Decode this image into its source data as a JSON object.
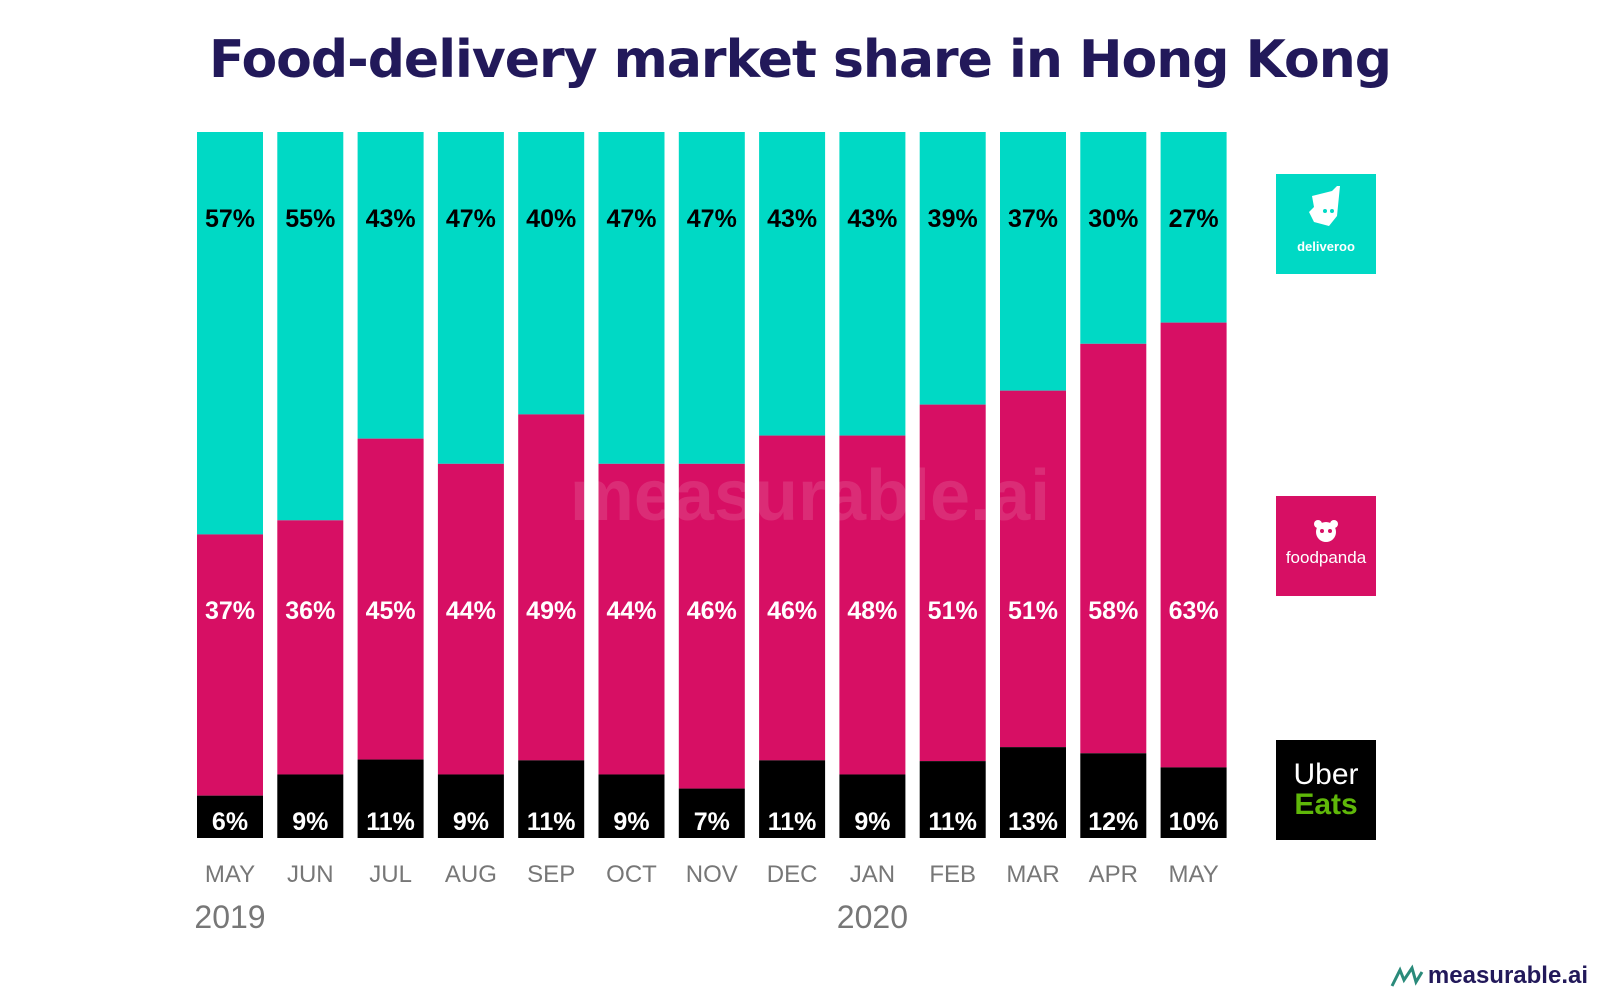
{
  "title": "Food-delivery market share in Hong Kong",
  "colors": {
    "deliveroo": "#00d9c5",
    "foodpanda": "#d70f64",
    "ubereats": "#000000",
    "uber_green": "#5fb709",
    "title": "#22195a"
  },
  "chart_data": {
    "type": "bar",
    "stacked": true,
    "categories": [
      "MAY",
      "JUN",
      "JUL",
      "AUG",
      "SEP",
      "OCT",
      "NOV",
      "DEC",
      "JAN",
      "FEB",
      "MAR",
      "APR",
      "MAY"
    ],
    "year_labels": [
      {
        "category_index": 0,
        "label": "2019"
      },
      {
        "category_index": 8,
        "label": "2020"
      }
    ],
    "series": [
      {
        "name": "deliveroo",
        "values": [
          57,
          55,
          43,
          47,
          40,
          47,
          47,
          43,
          43,
          39,
          37,
          30,
          27
        ]
      },
      {
        "name": "foodpanda",
        "values": [
          37,
          36,
          45,
          44,
          49,
          44,
          46,
          46,
          48,
          51,
          51,
          58,
          63
        ]
      },
      {
        "name": "Uber Eats",
        "values": [
          6,
          9,
          11,
          9,
          11,
          9,
          7,
          11,
          9,
          11,
          13,
          12,
          10
        ]
      }
    ],
    "value_suffix": "%",
    "ylim": [
      0,
      100
    ]
  },
  "legend": {
    "deliveroo": "deliveroo",
    "foodpanda": "foodpanda",
    "ubereats_line1": "Uber",
    "ubereats_line2": "Eats"
  },
  "watermark": "measurable.ai",
  "footer_logo": "measurable.ai"
}
